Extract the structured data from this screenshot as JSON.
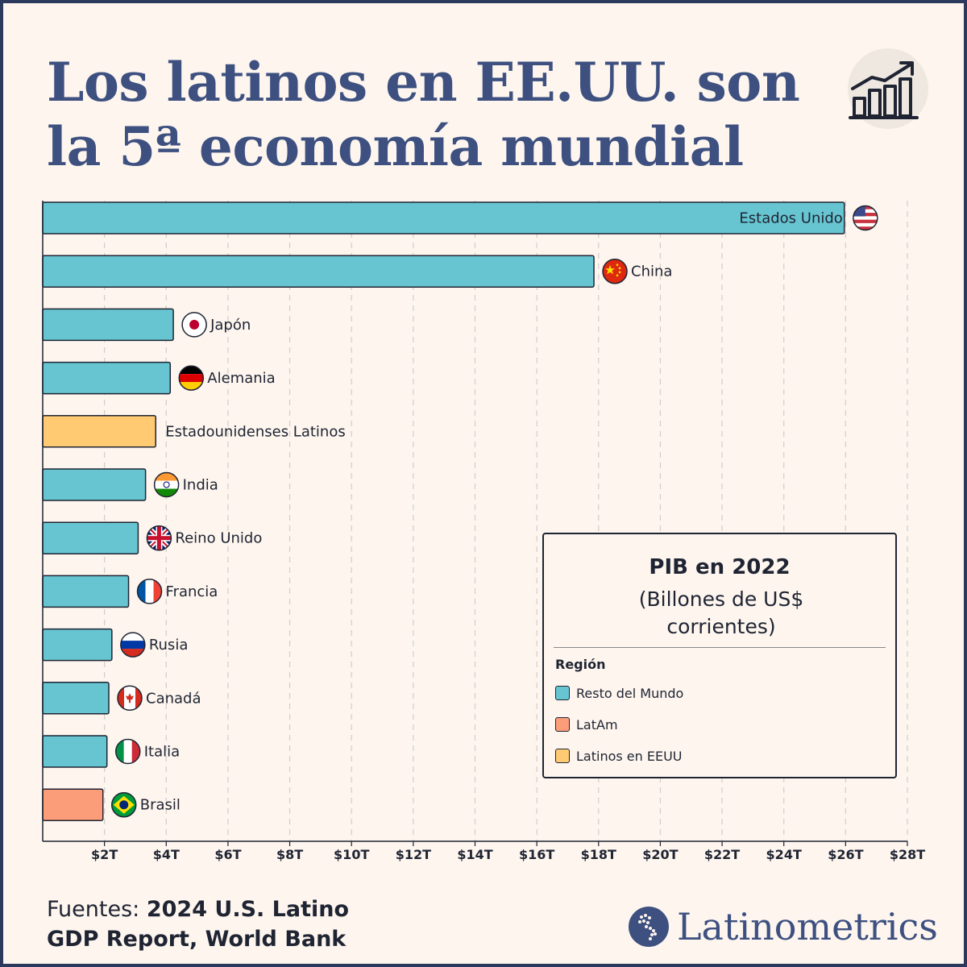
{
  "title": "Los latinos en EE.UU. son la 5ª economía mundial",
  "icons": {
    "title_icon": "bar-chart-trend-icon",
    "logo_icon": "americas-map-icon"
  },
  "colors": {
    "title": "#3d5080",
    "resto": "#67c5d1",
    "latam": "#fc9d79",
    "latinos": "#ffca72",
    "outline": "#1f2433",
    "grid": "#cfcfcf"
  },
  "legend": {
    "title": "PIB en 2022",
    "subtitle": "(Billones de US$ corrientes)",
    "heading": "Región",
    "items": [
      {
        "label": "Resto del Mundo",
        "color": "#67c5d1"
      },
      {
        "label": "LatAm",
        "color": "#fc9d79"
      },
      {
        "label": "Latinos en EEUU",
        "color": "#ffca72"
      }
    ]
  },
  "sources": {
    "lead": "Fuentes: ",
    "rest": "2024 U.S. Latino GDP Report, World Bank"
  },
  "logo": {
    "text": "Latinometrics"
  },
  "chart_data": {
    "type": "bar",
    "orientation": "horizontal",
    "title": "PIB en 2022",
    "xlabel": "",
    "ylabel": "",
    "xlim": [
      0,
      28
    ],
    "xticks": [
      2,
      4,
      6,
      8,
      10,
      12,
      14,
      16,
      18,
      20,
      22,
      24,
      26,
      28
    ],
    "xtick_labels": [
      "$2T",
      "$4T",
      "$6T",
      "$8T",
      "$10T",
      "$12T",
      "$14T",
      "$16T",
      "$18T",
      "$20T",
      "$22T",
      "$24T",
      "$26T",
      "$28T"
    ],
    "grid": "vertical dashed",
    "legend_position": "bottom-right",
    "categories": [
      "Estados Unido",
      "China",
      "Japón",
      "Alemania",
      "Estadounidenses Latinos",
      "India",
      "Reino Unido",
      "Francia",
      "Rusia",
      "Canadá",
      "Italia",
      "Brasil"
    ],
    "values": [
      25.96,
      17.85,
      4.23,
      4.13,
      3.66,
      3.33,
      3.09,
      2.78,
      2.24,
      2.14,
      2.08,
      1.95
    ],
    "regions": [
      "Resto del Mundo",
      "Resto del Mundo",
      "Resto del Mundo",
      "Resto del Mundo",
      "Latinos en EEUU",
      "Resto del Mundo",
      "Resto del Mundo",
      "Resto del Mundo",
      "Resto del Mundo",
      "Resto del Mundo",
      "Resto del Mundo",
      "LatAm"
    ],
    "flags": [
      "usa-flag-icon",
      "china-flag-icon",
      "japan-flag-icon",
      "germany-flag-icon",
      "",
      "india-flag-icon",
      "uk-flag-icon",
      "france-flag-icon",
      "russia-flag-icon",
      "canada-flag-icon",
      "italy-flag-icon",
      "brazil-flag-icon"
    ]
  }
}
